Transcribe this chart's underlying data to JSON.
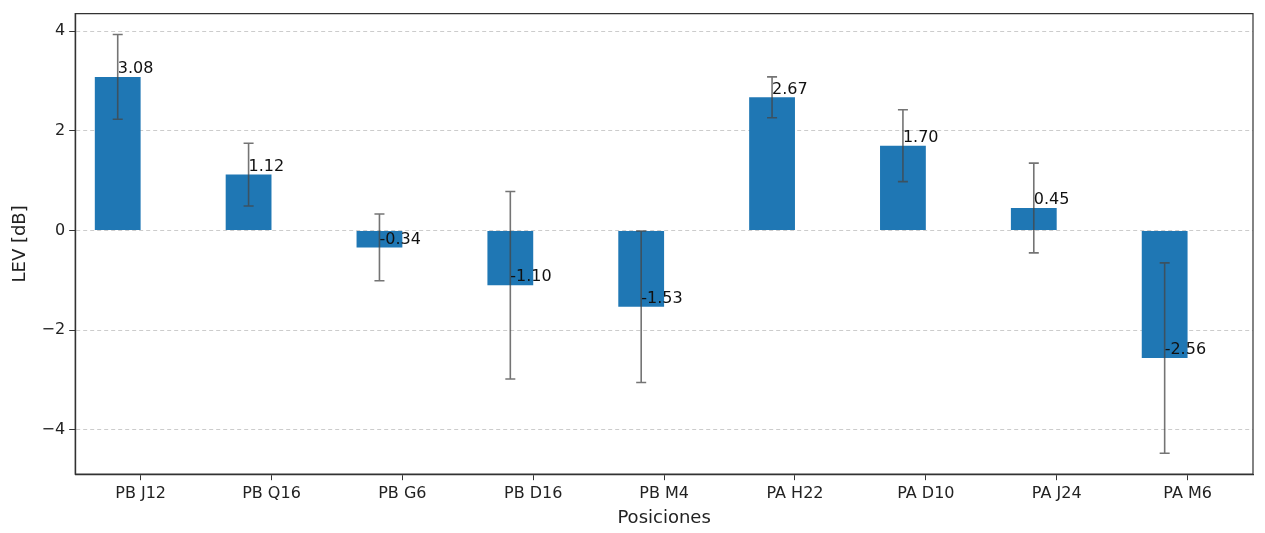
{
  "chart_data": {
    "type": "bar",
    "xlabel": "Posiciones",
    "ylabel": "LEV [dB]",
    "categories": [
      "PB J12",
      "PB Q16",
      "PB G6",
      "PB D16",
      "PB M4",
      "PA H22",
      "PA D10",
      "PA J24",
      "PA M6"
    ],
    "values": [
      3.08,
      1.12,
      -0.34,
      -1.1,
      -1.53,
      2.67,
      1.7,
      0.45,
      -2.56
    ],
    "errors": [
      0.85,
      0.63,
      0.67,
      1.88,
      1.52,
      0.41,
      0.72,
      0.9,
      1.91
    ],
    "value_labels": [
      "3.08",
      "1.12",
      "-0.34",
      "-1.10",
      "-1.53",
      "2.67",
      "1.70",
      "0.45",
      "-2.56"
    ],
    "color": "#1f77b4",
    "ylim": [
      -4.89,
      4.35
    ],
    "yticks": [
      {
        "value": -4,
        "label": "−4"
      },
      {
        "value": -2,
        "label": "−2"
      },
      0,
      2,
      4
    ],
    "grid": "y"
  }
}
